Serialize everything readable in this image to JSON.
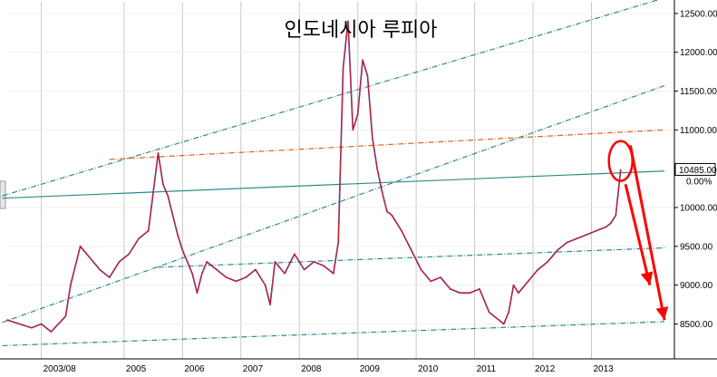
{
  "chart_data": {
    "type": "line",
    "title": "인도네시아 루피아",
    "xlabel": "",
    "ylabel": "",
    "x_ticks": [
      "2003/08",
      "2005",
      "2006",
      "2007",
      "2008",
      "2009",
      "2010",
      "2011",
      "2012",
      "2013"
    ],
    "y_ticks": [
      "12500.00",
      "12000.00",
      "11500.00",
      "11000.00",
      "10485.00",
      "10000.00",
      "9500.00",
      "9000.00",
      "8500.00"
    ],
    "y_range": [
      8050,
      12650
    ],
    "grid": true,
    "current_price": "10485.00",
    "current_change": "0.00%",
    "series": [
      {
        "color": "#d42020",
        "x": [
          "2003/01",
          "2003/06",
          "2003/08",
          "2003/10",
          "2004/01",
          "2004/02",
          "2004/04",
          "2004/06",
          "2004/08",
          "2004/10",
          "2004/12",
          "2005/02",
          "2005/04",
          "2005/06",
          "2005/07",
          "2005/08",
          "2005/09",
          "2005/10",
          "2005/11",
          "2005/12",
          "2006/01",
          "2006/02",
          "2006/03",
          "2006/04",
          "2006/05",
          "2006/06",
          "2006/08",
          "2006/10",
          "2006/12",
          "2007/02",
          "2007/04",
          "2007/06",
          "2007/07",
          "2007/08",
          "2007/10",
          "2007/12",
          "2008/02",
          "2008/04",
          "2008/06",
          "2008/08",
          "2008/09",
          "2008/10",
          "2008/11",
          "2008/12",
          "2009/01",
          "2009/02",
          "2009/03",
          "2009/04",
          "2009/05",
          "2009/06",
          "2009/07",
          "2009/08",
          "2009/10",
          "2009/12",
          "2010/02",
          "2010/04",
          "2010/06",
          "2010/08",
          "2010/10",
          "2010/12",
          "2011/02",
          "2011/04",
          "2011/06",
          "2011/07",
          "2011/08",
          "2011/09",
          "2011/10",
          "2011/12",
          "2012/02",
          "2012/04",
          "2012/06",
          "2012/08",
          "2012/10",
          "2012/12",
          "2013/02",
          "2013/04",
          "2013/05",
          "2013/06",
          "2013/07"
        ],
        "y": [
          8550,
          8450,
          8500,
          8400,
          8600,
          9000,
          9500,
          9350,
          9200,
          9100,
          9300,
          9400,
          9600,
          9700,
          10200,
          10700,
          10300,
          10150,
          9900,
          9650,
          9450,
          9300,
          9150,
          8900,
          9150,
          9300,
          9200,
          9100,
          9050,
          9100,
          9200,
          9000,
          8750,
          9300,
          9150,
          9400,
          9200,
          9300,
          9250,
          9150,
          9550,
          11800,
          12400,
          11000,
          11200,
          11900,
          11700,
          10900,
          10500,
          10200,
          9950,
          9900,
          9700,
          9450,
          9200,
          9050,
          9100,
          8950,
          8900,
          8900,
          8950,
          8650,
          8550,
          8500,
          8650,
          9000,
          8900,
          9050,
          9200,
          9300,
          9450,
          9550,
          9600,
          9650,
          9700,
          9750,
          9800,
          9900,
          10485
        ]
      }
    ],
    "trend_lines": [
      {
        "color": "#2e8b8b",
        "style": "dashed",
        "x": [
          "2002/12",
          "2014/04"
        ],
        "y": [
          10150,
          12700
        ]
      },
      {
        "color": "#2e8b8b",
        "style": "dashed",
        "x": [
          "2002/12",
          "2014/04"
        ],
        "y": [
          8520,
          11570
        ]
      },
      {
        "color": "#2e8b8b",
        "style": "solid",
        "x": [
          "2002/12",
          "2014/04"
        ],
        "y": [
          10120,
          10470
        ]
      },
      {
        "color": "#2e8b8b",
        "style": "dashed",
        "x": [
          "2002/12",
          "2014/04"
        ],
        "y": [
          8220,
          8530
        ]
      },
      {
        "color": "#2e8b8b",
        "style": "dashed",
        "x": [
          "2005/08",
          "2014/04"
        ],
        "y": [
          9230,
          9480
        ]
      },
      {
        "color": "#e06020",
        "style": "dashed",
        "x": [
          "2004/10",
          "2014/04"
        ],
        "y": [
          10620,
          11000
        ]
      }
    ],
    "annotation_ellipse": {
      "x": "2013/07",
      "y": 10600,
      "color": "#ff0000"
    },
    "annotation_arrows": [
      {
        "color": "#ff0000",
        "x": [
          "2013/08",
          "2014/01"
        ],
        "y": [
          10300,
          9000
        ]
      },
      {
        "color": "#ff0000",
        "x": [
          "2013/09",
          "2014/04"
        ],
        "y": [
          10800,
          8550
        ]
      }
    ]
  }
}
